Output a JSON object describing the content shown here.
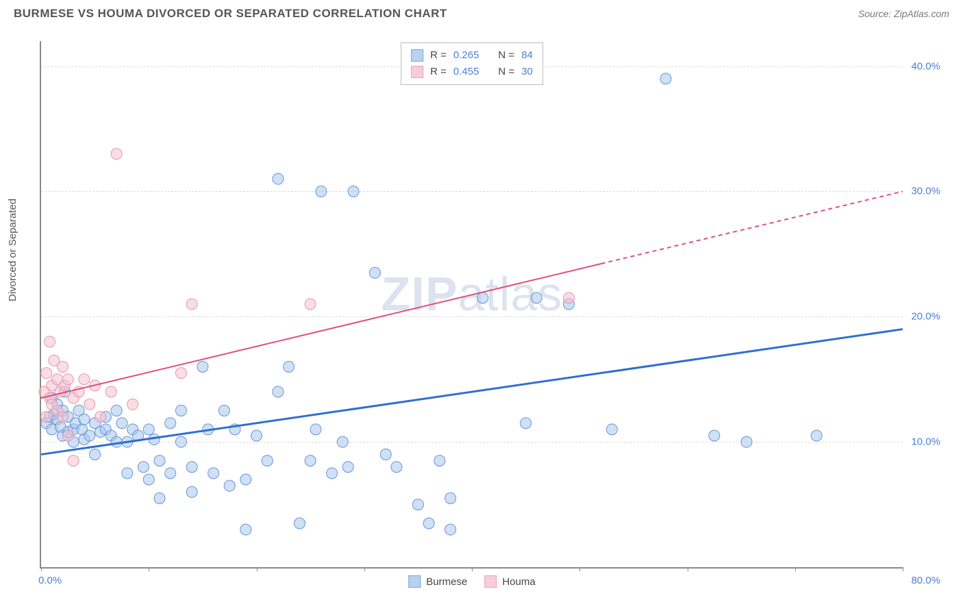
{
  "header": {
    "title": "BURMESE VS HOUMA DIVORCED OR SEPARATED CORRELATION CHART",
    "source_label": "Source:",
    "source_name": "ZipAtlas.com"
  },
  "chart": {
    "type": "scatter",
    "ylabel": "Divorced or Separated",
    "watermark_bold": "ZIP",
    "watermark_light": "atlas",
    "xlim": [
      0,
      80
    ],
    "ylim": [
      0,
      42
    ],
    "x_axis": {
      "ticks": [
        0,
        10,
        20,
        30,
        40,
        50,
        60,
        70,
        80
      ],
      "label_left": "0.0%",
      "label_right": "80.0%"
    },
    "y_axis": {
      "gridlines": [
        10,
        20,
        30,
        40
      ],
      "labels": [
        "10.0%",
        "20.0%",
        "30.0%",
        "40.0%"
      ]
    },
    "background_color": "#ffffff",
    "grid_color": "#dcdcdc",
    "axis_color": "#888888",
    "tick_label_color": "#4a7fd4",
    "marker_radius": 8,
    "marker_opacity": 0.55,
    "series": [
      {
        "name": "Burmese",
        "fill_color": "#a9c6ec",
        "stroke_color": "#6694d6",
        "swatch_fill": "#b9d1ef",
        "swatch_border": "#7ba4dd",
        "r_value": "0.265",
        "n_value": "84",
        "trend": {
          "color": "#2e6fd1",
          "width": 3,
          "x1": 0,
          "y1": 9.0,
          "x2": 80,
          "y2": 19.0,
          "dash_from_x": null
        },
        "points": [
          [
            0.5,
            11.5
          ],
          [
            0.8,
            12.0
          ],
          [
            1.0,
            13.5
          ],
          [
            1.0,
            11.0
          ],
          [
            1.2,
            12.2
          ],
          [
            1.5,
            11.8
          ],
          [
            1.5,
            13.0
          ],
          [
            1.8,
            11.2
          ],
          [
            2.0,
            10.5
          ],
          [
            2.0,
            12.5
          ],
          [
            2.2,
            14.0
          ],
          [
            2.5,
            10.8
          ],
          [
            2.5,
            12.0
          ],
          [
            3.0,
            11.0
          ],
          [
            3.0,
            10.0
          ],
          [
            3.2,
            11.5
          ],
          [
            3.5,
            12.5
          ],
          [
            3.8,
            11.0
          ],
          [
            4.0,
            10.2
          ],
          [
            4.0,
            11.8
          ],
          [
            4.5,
            10.5
          ],
          [
            5.0,
            11.5
          ],
          [
            5.0,
            9.0
          ],
          [
            5.5,
            10.8
          ],
          [
            6.0,
            11.0
          ],
          [
            6.0,
            12.0
          ],
          [
            6.5,
            10.5
          ],
          [
            7.0,
            12.5
          ],
          [
            7.0,
            10.0
          ],
          [
            7.5,
            11.5
          ],
          [
            8.0,
            10.0
          ],
          [
            8.0,
            7.5
          ],
          [
            8.5,
            11.0
          ],
          [
            9.0,
            10.5
          ],
          [
            9.5,
            8.0
          ],
          [
            10.0,
            7.0
          ],
          [
            10.0,
            11.0
          ],
          [
            10.5,
            10.2
          ],
          [
            11.0,
            5.5
          ],
          [
            11.0,
            8.5
          ],
          [
            12.0,
            11.5
          ],
          [
            12.0,
            7.5
          ],
          [
            13.0,
            10.0
          ],
          [
            13.0,
            12.5
          ],
          [
            14.0,
            8.0
          ],
          [
            14.0,
            6.0
          ],
          [
            15.0,
            16.0
          ],
          [
            15.5,
            11.0
          ],
          [
            16.0,
            7.5
          ],
          [
            17.0,
            12.5
          ],
          [
            17.5,
            6.5
          ],
          [
            18.0,
            11.0
          ],
          [
            19.0,
            7.0
          ],
          [
            19.0,
            3.0
          ],
          [
            20.0,
            10.5
          ],
          [
            21.0,
            8.5
          ],
          [
            22.0,
            14.0
          ],
          [
            22.0,
            31.0
          ],
          [
            23.0,
            16.0
          ],
          [
            24.0,
            3.5
          ],
          [
            25.0,
            8.5
          ],
          [
            25.5,
            11.0
          ],
          [
            26.0,
            30.0
          ],
          [
            27.0,
            7.5
          ],
          [
            28.0,
            10.0
          ],
          [
            28.5,
            8.0
          ],
          [
            29.0,
            30.0
          ],
          [
            31.0,
            23.5
          ],
          [
            32.0,
            9.0
          ],
          [
            33.0,
            8.0
          ],
          [
            35.0,
            5.0
          ],
          [
            36.0,
            3.5
          ],
          [
            37.0,
            8.5
          ],
          [
            38.0,
            5.5
          ],
          [
            38.0,
            3.0
          ],
          [
            41.0,
            21.5
          ],
          [
            45.0,
            11.5
          ],
          [
            46.0,
            21.5
          ],
          [
            49.0,
            21.0
          ],
          [
            53.0,
            11.0
          ],
          [
            58.0,
            39.0
          ],
          [
            62.5,
            10.5
          ],
          [
            65.5,
            10.0
          ],
          [
            72.0,
            10.5
          ]
        ]
      },
      {
        "name": "Houma",
        "fill_color": "#f4c2cf",
        "stroke_color": "#e893ab",
        "swatch_fill": "#f7cdd8",
        "swatch_border": "#eda4b8",
        "r_value": "0.455",
        "n_value": "30",
        "trend": {
          "color": "#e04f78",
          "width": 2,
          "x1": 0,
          "y1": 13.5,
          "x2": 80,
          "y2": 30.0,
          "dash_from_x": 52
        },
        "points": [
          [
            0.3,
            14.0
          ],
          [
            0.5,
            12.0
          ],
          [
            0.5,
            15.5
          ],
          [
            0.8,
            13.5
          ],
          [
            0.8,
            18.0
          ],
          [
            1.0,
            14.5
          ],
          [
            1.0,
            13.0
          ],
          [
            1.2,
            16.5
          ],
          [
            1.5,
            15.0
          ],
          [
            1.5,
            12.5
          ],
          [
            1.8,
            14.0
          ],
          [
            2.0,
            16.0
          ],
          [
            2.0,
            12.0
          ],
          [
            2.2,
            14.5
          ],
          [
            2.5,
            10.5
          ],
          [
            2.5,
            15.0
          ],
          [
            3.0,
            13.5
          ],
          [
            3.0,
            8.5
          ],
          [
            3.5,
            14.0
          ],
          [
            4.0,
            15.0
          ],
          [
            4.5,
            13.0
          ],
          [
            5.0,
            14.5
          ],
          [
            5.5,
            12.0
          ],
          [
            6.5,
            14.0
          ],
          [
            7.0,
            33.0
          ],
          [
            8.5,
            13.0
          ],
          [
            13.0,
            15.5
          ],
          [
            14.0,
            21.0
          ],
          [
            25.0,
            21.0
          ],
          [
            49.0,
            21.5
          ]
        ]
      }
    ],
    "legend_r_label": "R =",
    "legend_n_label": "N ="
  }
}
